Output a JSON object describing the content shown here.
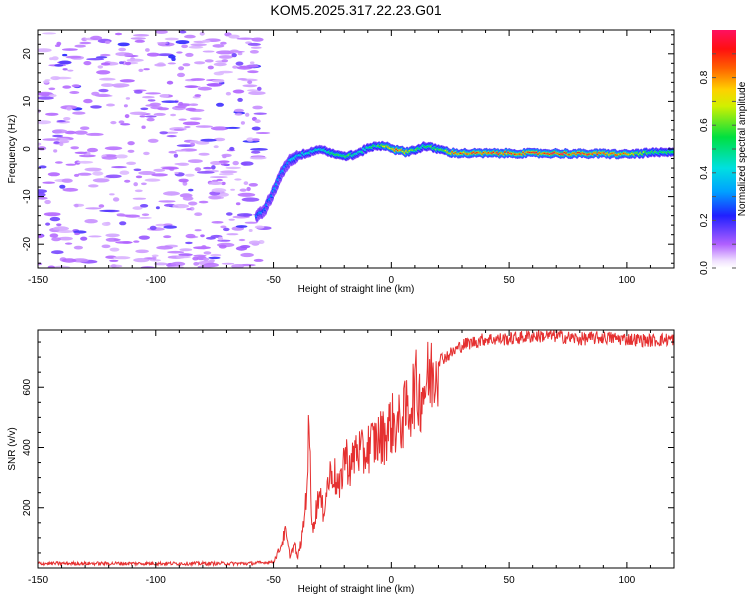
{
  "title": "KOM5.2025.317.22.23.G01",
  "colors": {
    "snr_line": "#e53030",
    "background": "#ffffff",
    "axis": "#000000"
  },
  "chart_data": [
    {
      "type": "heatmap",
      "name": "spectrogram",
      "xlabel": "Height of straight line (km)",
      "ylabel": "Frequency (Hz)",
      "xlim": [
        -150,
        120
      ],
      "ylim": [
        -25,
        25
      ],
      "xticks": [
        -150,
        -100,
        -50,
        0,
        50,
        100
      ],
      "yticks": [
        -20,
        -10,
        0,
        10,
        20
      ],
      "colorbar": {
        "label": "Normalized spectral amplitude",
        "range": [
          0,
          1
        ],
        "ticks": [
          0.0,
          0.2,
          0.4,
          0.6,
          0.8
        ],
        "tick_labels": [
          "0.0",
          "0.2",
          "0.4",
          "0.6",
          "0.8"
        ],
        "colormap": "rainbow (white-violet-blue-cyan-green-yellow-red-magenta)"
      },
      "ridge": {
        "description": "Dominant frequency track of the signal",
        "x": [
          -57,
          -54,
          -52,
          -50,
          -48,
          -46,
          -44,
          -42,
          -40,
          -37,
          -34,
          -30,
          -26,
          -22,
          -18,
          -14,
          -10,
          -6,
          -2,
          2,
          6,
          10,
          14,
          18,
          22,
          26,
          30,
          40,
          50,
          60,
          70,
          80,
          90,
          100,
          110,
          120
        ],
        "frequency": [
          -14,
          -13,
          -11,
          -9,
          -6.5,
          -4.5,
          -3,
          -2,
          -1.5,
          -1,
          -0.5,
          0,
          -0.7,
          -1.4,
          -1.4,
          -1,
          0.3,
          0.6,
          0.7,
          -0.2,
          -0.6,
          -0.2,
          0.6,
          0.2,
          -0.3,
          -0.8,
          -0.9,
          -0.9,
          -0.9,
          -0.9,
          -0.9,
          -1,
          -1,
          -1.1,
          -0.8,
          -0.7
        ],
        "amplitude": [
          0.3,
          0.3,
          0.28,
          0.32,
          0.3,
          0.35,
          0.3,
          0.4,
          0.4,
          0.45,
          0.45,
          0.45,
          0.5,
          0.55,
          0.6,
          0.45,
          0.5,
          0.55,
          0.7,
          0.85,
          0.75,
          0.6,
          0.5,
          0.6,
          0.65,
          0.8,
          0.85,
          0.9,
          0.88,
          0.9,
          0.92,
          0.9,
          0.92,
          0.8,
          0.6,
          0.55
        ]
      },
      "noise_region_x": [
        -150,
        -57
      ]
    },
    {
      "type": "line",
      "name": "snr",
      "xlabel": "Height of straight line (km)",
      "ylabel": "SNR (v/v)",
      "xlim": [
        -150,
        120
      ],
      "ylim": [
        0,
        790
      ],
      "xticks": [
        -150,
        -100,
        -50,
        0,
        50,
        100
      ],
      "yticks": [
        200,
        400,
        600
      ],
      "series": [
        {
          "name": "SNR",
          "x": [
            -150,
            -60,
            -50,
            -47,
            -45,
            -43,
            -41,
            -40,
            -38,
            -37,
            -36,
            -35,
            -34,
            -33,
            -31,
            -29,
            -27,
            -25,
            -22,
            -20,
            -17,
            -15,
            -12,
            -10,
            -7,
            -5,
            -3,
            0,
            3,
            5,
            8,
            10,
            12,
            15,
            17,
            20,
            25,
            30,
            40,
            50,
            60,
            70,
            80,
            90,
            100,
            110,
            120
          ],
          "y": [
            15,
            15,
            20,
            70,
            120,
            40,
            80,
            30,
            100,
            170,
            270,
            470,
            200,
            130,
            250,
            190,
            280,
            330,
            250,
            380,
            330,
            400,
            370,
            400,
            420,
            430,
            440,
            480,
            470,
            500,
            540,
            600,
            570,
            620,
            640,
            690,
            710,
            740,
            760,
            760,
            770,
            770,
            760,
            765,
            760,
            755,
            760
          ]
        }
      ]
    }
  ]
}
